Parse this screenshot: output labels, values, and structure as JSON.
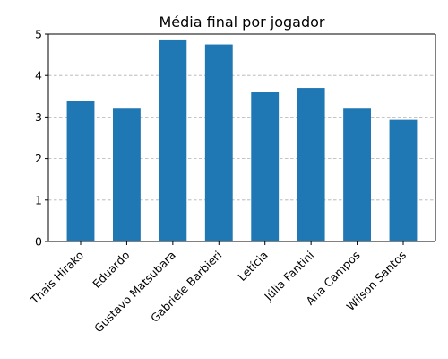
{
  "chart_data": {
    "type": "bar",
    "title": "Média final por jogador",
    "xlabel": "",
    "ylabel": "",
    "categories": [
      "Thais Hirako",
      "Eduardo",
      "Gustavo Matsubara",
      "Gabriele Barbieri",
      "Letícia",
      "Júlia Fantini",
      "Ana Campos",
      "Wilson Santos"
    ],
    "values": [
      3.38,
      3.22,
      4.85,
      4.75,
      3.61,
      3.7,
      3.22,
      2.93
    ],
    "ylim": [
      0,
      5
    ],
    "yticks": [
      0,
      1,
      2,
      3,
      4,
      5
    ],
    "grid": "y-axis dashed",
    "bar_color": "#1f77b4"
  }
}
